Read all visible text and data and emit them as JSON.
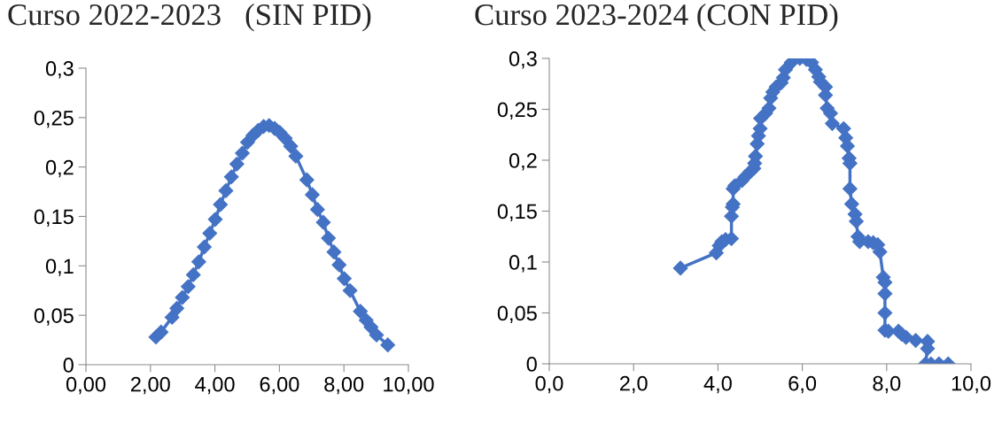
{
  "chart_data": [
    {
      "type": "line",
      "title": "Curso 2022-2023   (SIN PID)",
      "marker": "diamond",
      "line_style": "solid",
      "grid": false,
      "series": [
        {
          "color": "#4472c4",
          "x": [
            2.17,
            2.33,
            2.67,
            2.82,
            2.99,
            3.17,
            3.33,
            3.5,
            3.67,
            3.84,
            4.01,
            4.17,
            4.34,
            4.51,
            4.68,
            4.85,
            5.01,
            5.18,
            5.34,
            5.51,
            5.68,
            5.85,
            6.01,
            6.18,
            6.35,
            6.51,
            6.85,
            7.02,
            7.18,
            7.36,
            7.52,
            7.69,
            7.85,
            8.01,
            8.19,
            8.51,
            8.69,
            8.84,
            9.01,
            9.36
          ],
          "values": [
            0.028,
            0.033,
            0.048,
            0.057,
            0.068,
            0.079,
            0.091,
            0.104,
            0.119,
            0.133,
            0.147,
            0.162,
            0.176,
            0.19,
            0.203,
            0.214,
            0.225,
            0.232,
            0.237,
            0.241,
            0.242,
            0.239,
            0.235,
            0.229,
            0.221,
            0.211,
            0.187,
            0.172,
            0.157,
            0.144,
            0.128,
            0.114,
            0.101,
            0.087,
            0.075,
            0.054,
            0.045,
            0.038,
            0.03,
            0.02
          ]
        }
      ],
      "xlim": [
        0,
        10
      ],
      "ylim": [
        0,
        0.3
      ],
      "xticks": [
        {
          "value": 0,
          "label": "0,00"
        },
        {
          "value": 2,
          "label": "2,00"
        },
        {
          "value": 4,
          "label": "4,00"
        },
        {
          "value": 6,
          "label": "6,00"
        },
        {
          "value": 8,
          "label": "8,00"
        },
        {
          "value": 10,
          "label": "10,00"
        }
      ],
      "yticks": [
        0,
        {
          "value": 0.05,
          "label": "0,05"
        },
        {
          "value": 0.1,
          "label": "0,1"
        },
        {
          "value": 0.15,
          "label": "0,15"
        },
        {
          "value": 0.2,
          "label": "0,2"
        },
        {
          "value": 0.25,
          "label": "0,25"
        },
        {
          "value": 0.3,
          "label": "0,3"
        }
      ]
    },
    {
      "type": "line",
      "title": "Curso 2023-2024 (CON PID)",
      "marker": "diamond",
      "line_style": "solid",
      "grid": false,
      "series": [
        {
          "color": "#4472c4",
          "x": [
            3.11,
            3.96,
            4.03,
            4.09,
            4.18,
            4.32,
            4.32,
            4.34,
            4.36,
            4.36,
            4.4,
            4.57,
            4.65,
            4.77,
            4.85,
            4.87,
            4.89,
            4.93,
            4.96,
            5.0,
            5.01,
            5.13,
            5.21,
            5.25,
            5.3,
            5.38,
            5.5,
            5.55,
            5.6,
            5.74,
            5.94,
            6.1,
            6.22,
            6.31,
            6.39,
            6.43,
            6.55,
            6.55,
            6.59,
            6.67,
            6.71,
            6.98,
            7.03,
            7.07,
            7.11,
            7.13,
            7.13,
            7.17,
            7.25,
            7.28,
            7.32,
            7.36,
            7.56,
            7.68,
            7.79,
            7.84,
            7.92,
            7.96,
            7.96,
            7.96,
            7.96,
            8.04,
            8.28,
            8.36,
            8.46,
            8.69,
            8.97,
            8.97,
            8.92,
            9.05,
            9.24,
            9.46
          ],
          "values": [
            0.094,
            0.109,
            0.116,
            0.12,
            0.122,
            0.123,
            0.145,
            0.154,
            0.157,
            0.172,
            0.175,
            0.18,
            0.184,
            0.189,
            0.192,
            0.197,
            0.204,
            0.216,
            0.224,
            0.231,
            0.241,
            0.246,
            0.251,
            0.261,
            0.267,
            0.272,
            0.276,
            0.281,
            0.289,
            0.296,
            0.3,
            0.299,
            0.296,
            0.289,
            0.282,
            0.277,
            0.272,
            0.264,
            0.251,
            0.246,
            0.236,
            0.231,
            0.222,
            0.214,
            0.202,
            0.197,
            0.172,
            0.157,
            0.147,
            0.14,
            0.125,
            0.12,
            0.12,
            0.119,
            0.117,
            0.11,
            0.085,
            0.08,
            0.069,
            0.05,
            0.033,
            0.032,
            0.032,
            0.029,
            0.026,
            0.023,
            0.022,
            0.015,
            0,
            0,
            0,
            0
          ]
        }
      ],
      "xlim": [
        0,
        10
      ],
      "ylim": [
        0,
        0.3
      ],
      "xticks": [
        {
          "value": 0,
          "label": "0,0"
        },
        {
          "value": 2,
          "label": "2,0"
        },
        {
          "value": 4,
          "label": "4,0"
        },
        {
          "value": 6,
          "label": "6,0"
        },
        {
          "value": 8,
          "label": "8,0"
        },
        {
          "value": 10,
          "label": "10,0"
        }
      ],
      "yticks": [
        0,
        {
          "value": 0.05,
          "label": "0,05"
        },
        {
          "value": 0.1,
          "label": "0,1"
        },
        {
          "value": 0.15,
          "label": "0,15"
        },
        {
          "value": 0.2,
          "label": "0,2"
        },
        {
          "value": 0.25,
          "label": "0,25"
        },
        {
          "value": 0.3,
          "label": "0,3"
        }
      ]
    }
  ]
}
